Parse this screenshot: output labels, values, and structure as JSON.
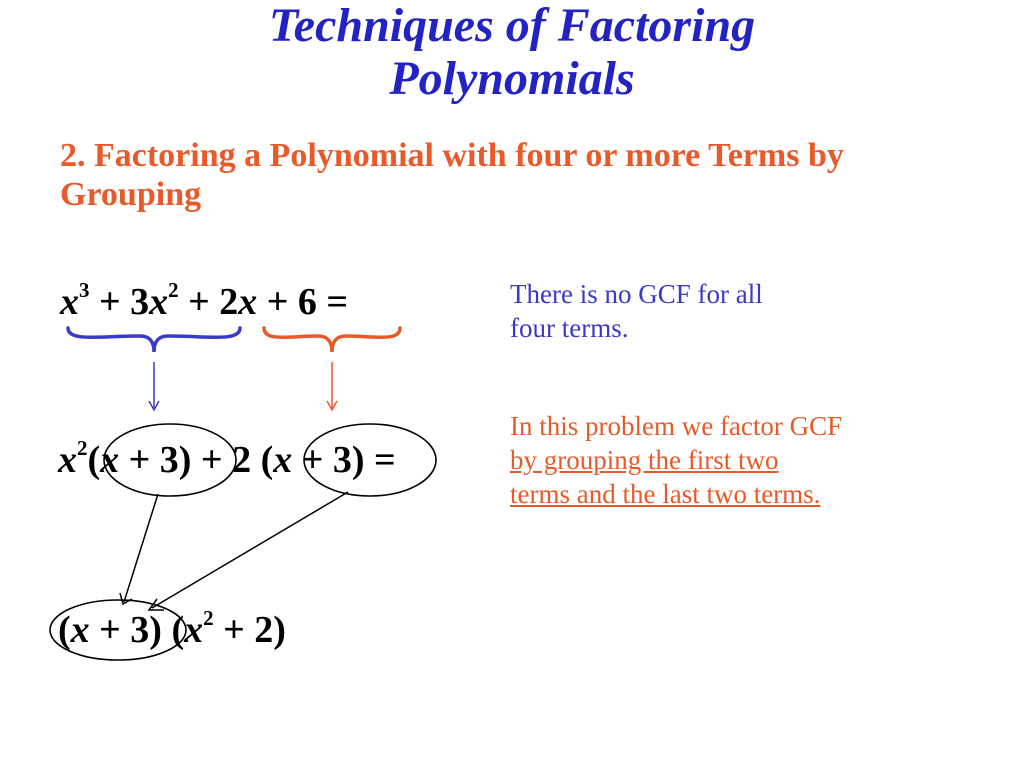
{
  "colors": {
    "title": "#2323c4",
    "subtitle": "#e85a2a",
    "note_blue": "#3a3ac8",
    "note_orange": "#e85a2a",
    "brace_blue": "#3a3ac8",
    "brace_orange": "#e85a2a",
    "ink": "#000000",
    "background": "#ffffff"
  },
  "title": {
    "line1": "Techniques of Factoring",
    "line2": "Polynomials",
    "fontsize": 48
  },
  "subtitle": {
    "text": "2.  Factoring a Polynomial with four or more Terms by Grouping",
    "fontsize": 34
  },
  "eq1": {
    "html": "<i>x</i><sup>3</sup> <span class='n'>+ 3</span><i>x</i><sup>2</sup> <span class='n'>+ 2</span><i>x</i> <span class='n'>+ 6 =</span>",
    "fontsize": 38
  },
  "eq2": {
    "html": "<i>x</i><sup>2</sup><span class='n'>(</span><i>x</i> <span class='n'>+ 3) + 2 (</span><i>x</i> <span class='n'>+ 3) =</span>",
    "fontsize": 38
  },
  "eq3": {
    "html": "<span class='n'>(</span><i>x</i> <span class='n'>+ 3) (</span><i>x</i><sup>2</sup> <span class='n'>+ 2)</span>",
    "fontsize": 38
  },
  "note1": {
    "line1": "There is no GCF for all",
    "line2": "four terms.",
    "fontsize": 27
  },
  "note2": {
    "line1_a": "In this problem we factor GCF",
    "line2_a": "by grouping the first two",
    "line3_a": "terms and the last two terms.",
    "fontsize": 27
  }
}
